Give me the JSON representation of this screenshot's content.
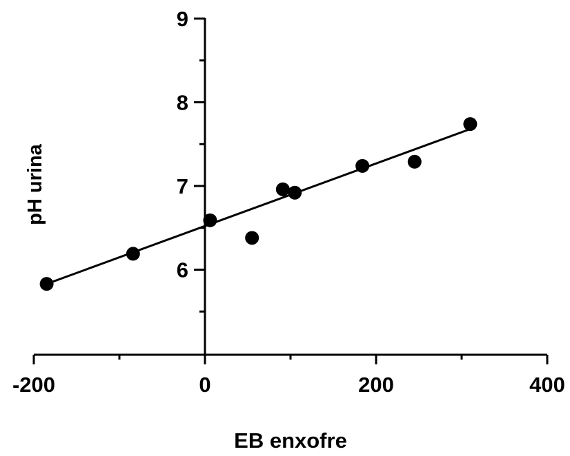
{
  "chart_data": {
    "type": "scatter",
    "title": "",
    "xlabel": "EB enxofre",
    "ylabel": "pH urina",
    "xlim": [
      -200,
      400
    ],
    "ylim": [
      5,
      9
    ],
    "x_ticks": [
      -200,
      0,
      200,
      400
    ],
    "x_minor_ticks": [
      -100,
      100,
      300
    ],
    "y_ticks": [
      6,
      7,
      8,
      9
    ],
    "y_minor_ticks": [
      5.5,
      6.5,
      7.5,
      8.5
    ],
    "grid": false,
    "legend": "none",
    "marker_color": "#000000",
    "points": [
      {
        "x": -185,
        "y": 5.83
      },
      {
        "x": -84,
        "y": 6.19
      },
      {
        "x": 6,
        "y": 6.59
      },
      {
        "x": 55,
        "y": 6.38
      },
      {
        "x": 91,
        "y": 6.96
      },
      {
        "x": 105,
        "y": 6.92
      },
      {
        "x": 184,
        "y": 7.24
      },
      {
        "x": 245,
        "y": 7.29
      },
      {
        "x": 310,
        "y": 7.74
      }
    ],
    "fit_line": {
      "x": [
        -185,
        310
      ],
      "y": [
        5.83,
        7.68
      ]
    }
  }
}
